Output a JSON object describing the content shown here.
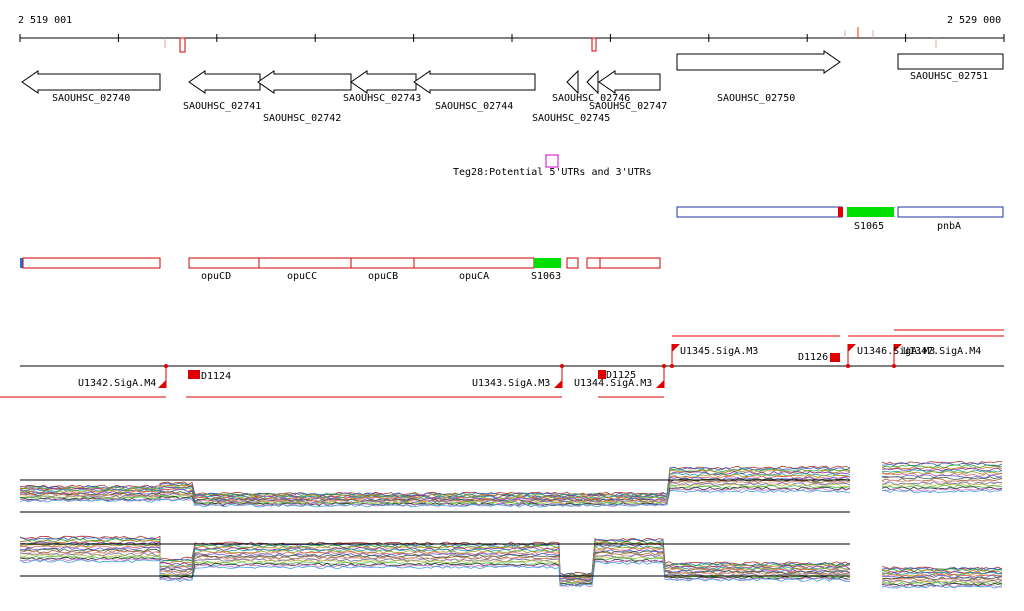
{
  "ruler": {
    "start_label": "2 519 001",
    "end_label": "2 529 000"
  },
  "genes": [
    {
      "label": "SAOUHSC_02740"
    },
    {
      "label": "SAOUHSC_02741"
    },
    {
      "label": "SAOUHSC_02742"
    },
    {
      "label": "SAOUHSC_02743"
    },
    {
      "label": "SAOUHSC_02744"
    },
    {
      "label": "SAOUHSC_02745"
    },
    {
      "label": "SAOUHSC_02746"
    },
    {
      "label": "SAOUHSC_02747"
    },
    {
      "label": "SAOUHSC_02750"
    },
    {
      "label": "SAOUHSC_02751"
    }
  ],
  "feature_note": "Teg28:Potential 5'UTRs and 3'UTRs",
  "operons": [
    {
      "label": "opuCD"
    },
    {
      "label": "opuCC"
    },
    {
      "label": "opuCB"
    },
    {
      "label": "opuCA"
    },
    {
      "label": "S1063"
    },
    {
      "label": "S1065"
    },
    {
      "label": "pnbA"
    }
  ],
  "promoters": [
    {
      "label": "U1342.SigA.M4"
    },
    {
      "label": "D1124"
    },
    {
      "label": "U1343.SigA.M3"
    },
    {
      "label": "U1344.SigA.M3"
    },
    {
      "label": "D1125"
    },
    {
      "label": "U1345.SigA.M3"
    },
    {
      "label": "D1126"
    },
    {
      "label": "U1346.SigA.M3"
    },
    {
      "label": "U1347.SigA.M4"
    }
  ],
  "colors": {
    "operon_outline": "#d00000",
    "srna_fill": "#00e000",
    "blue_outline": "#2030a0",
    "teg_box": "#d000d0",
    "promoter": "#ff0000"
  }
}
